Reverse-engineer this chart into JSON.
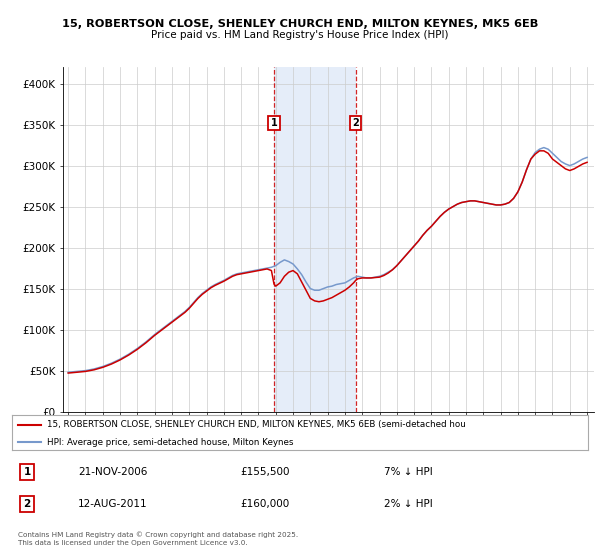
{
  "title1": "15, ROBERTSON CLOSE, SHENLEY CHURCH END, MILTON KEYNES, MK5 6EB",
  "title2": "Price paid vs. HM Land Registry's House Price Index (HPI)",
  "ylabel_ticks": [
    "£0",
    "£50K",
    "£100K",
    "£150K",
    "£200K",
    "£250K",
    "£300K",
    "£350K",
    "£400K"
  ],
  "ytick_vals": [
    0,
    50000,
    100000,
    150000,
    200000,
    250000,
    300000,
    350000,
    400000
  ],
  "ylim": [
    0,
    420000
  ],
  "hpi_color": "#7799cc",
  "price_color": "#cc0000",
  "marker1_date": 2006.9,
  "marker2_date": 2011.62,
  "shade_color": "#ccddf5",
  "legend_line1": "15, ROBERTSON CLOSE, SHENLEY CHURCH END, MILTON KEYNES, MK5 6EB (semi-detached hou",
  "legend_line2": "HPI: Average price, semi-detached house, Milton Keynes",
  "marker1_text": "21-NOV-2006",
  "marker1_price": "£155,500",
  "marker1_pct": "7% ↓ HPI",
  "marker2_text": "12-AUG-2011",
  "marker2_price": "£160,000",
  "marker2_pct": "2% ↓ HPI",
  "footnote": "Contains HM Land Registry data © Crown copyright and database right 2025.\nThis data is licensed under the Open Government Licence v3.0.",
  "background": "#ffffff",
  "grid_color": "#cccccc",
  "hpi_years": [
    1995.0,
    1995.25,
    1995.5,
    1995.75,
    1996.0,
    1996.25,
    1996.5,
    1996.75,
    1997.0,
    1997.25,
    1997.5,
    1997.75,
    1998.0,
    1998.25,
    1998.5,
    1998.75,
    1999.0,
    1999.25,
    1999.5,
    1999.75,
    2000.0,
    2000.25,
    2000.5,
    2000.75,
    2001.0,
    2001.25,
    2001.5,
    2001.75,
    2002.0,
    2002.25,
    2002.5,
    2002.75,
    2003.0,
    2003.25,
    2003.5,
    2003.75,
    2004.0,
    2004.25,
    2004.5,
    2004.75,
    2005.0,
    2005.25,
    2005.5,
    2005.75,
    2006.0,
    2006.25,
    2006.5,
    2006.75,
    2007.0,
    2007.25,
    2007.5,
    2007.75,
    2008.0,
    2008.25,
    2008.5,
    2008.75,
    2009.0,
    2009.25,
    2009.5,
    2009.75,
    2010.0,
    2010.25,
    2010.5,
    2010.75,
    2011.0,
    2011.25,
    2011.5,
    2011.75,
    2012.0,
    2012.25,
    2012.5,
    2012.75,
    2013.0,
    2013.25,
    2013.5,
    2013.75,
    2014.0,
    2014.25,
    2014.5,
    2014.75,
    2015.0,
    2015.25,
    2015.5,
    2015.75,
    2016.0,
    2016.25,
    2016.5,
    2016.75,
    2017.0,
    2017.25,
    2017.5,
    2017.75,
    2018.0,
    2018.25,
    2018.5,
    2018.75,
    2019.0,
    2019.25,
    2019.5,
    2019.75,
    2020.0,
    2020.25,
    2020.5,
    2020.75,
    2021.0,
    2021.25,
    2021.5,
    2021.75,
    2022.0,
    2022.25,
    2022.5,
    2022.75,
    2023.0,
    2023.25,
    2023.5,
    2023.75,
    2024.0,
    2024.25,
    2024.5,
    2024.75,
    2025.0
  ],
  "hpi_vals": [
    48000,
    48500,
    49000,
    49500,
    50000,
    51000,
    52000,
    53500,
    55000,
    57000,
    59000,
    61500,
    64000,
    67000,
    70000,
    73500,
    77000,
    81000,
    85000,
    89500,
    94000,
    98000,
    102000,
    106000,
    110000,
    114000,
    118000,
    122000,
    127000,
    133000,
    139000,
    144000,
    148000,
    152000,
    155000,
    157500,
    160000,
    163000,
    166000,
    168000,
    169000,
    170000,
    171000,
    172000,
    173000,
    174000,
    175000,
    176000,
    178000,
    182000,
    185000,
    183000,
    180000,
    174000,
    167000,
    158000,
    150000,
    148000,
    148000,
    150000,
    152000,
    153000,
    155000,
    156000,
    157000,
    160000,
    163000,
    165000,
    164000,
    163000,
    163000,
    164000,
    165000,
    167000,
    170000,
    173000,
    178000,
    184000,
    190000,
    196000,
    202000,
    208000,
    215000,
    221000,
    226000,
    232000,
    238000,
    243000,
    247000,
    250000,
    253000,
    255000,
    256000,
    257000,
    257000,
    256000,
    255000,
    254000,
    253000,
    252000,
    252000,
    253000,
    255000,
    260000,
    268000,
    280000,
    295000,
    308000,
    316000,
    320000,
    322000,
    320000,
    315000,
    310000,
    305000,
    302000,
    300000,
    302000,
    305000,
    308000,
    310000
  ],
  "price_years": [
    1995.0,
    1995.25,
    1995.5,
    1995.75,
    1996.0,
    1996.25,
    1996.5,
    1996.75,
    1997.0,
    1997.25,
    1997.5,
    1997.75,
    1998.0,
    1998.25,
    1998.5,
    1998.75,
    1999.0,
    1999.25,
    1999.5,
    1999.75,
    2000.0,
    2000.25,
    2000.5,
    2000.75,
    2001.0,
    2001.25,
    2001.5,
    2001.75,
    2002.0,
    2002.25,
    2002.5,
    2002.75,
    2003.0,
    2003.25,
    2003.5,
    2003.75,
    2004.0,
    2004.25,
    2004.5,
    2004.75,
    2005.0,
    2005.25,
    2005.5,
    2005.75,
    2006.0,
    2006.25,
    2006.5,
    2006.75,
    2006.9,
    2007.0,
    2007.25,
    2007.5,
    2007.75,
    2008.0,
    2008.25,
    2008.5,
    2008.75,
    2009.0,
    2009.25,
    2009.5,
    2009.75,
    2010.0,
    2010.25,
    2010.5,
    2010.75,
    2011.0,
    2011.25,
    2011.5,
    2011.62,
    2011.75,
    2012.0,
    2012.25,
    2012.5,
    2012.75,
    2013.0,
    2013.25,
    2013.5,
    2013.75,
    2014.0,
    2014.25,
    2014.5,
    2014.75,
    2015.0,
    2015.25,
    2015.5,
    2015.75,
    2016.0,
    2016.25,
    2016.5,
    2016.75,
    2017.0,
    2017.25,
    2017.5,
    2017.75,
    2018.0,
    2018.25,
    2018.5,
    2018.75,
    2019.0,
    2019.25,
    2019.5,
    2019.75,
    2020.0,
    2020.25,
    2020.5,
    2020.75,
    2021.0,
    2021.25,
    2021.5,
    2021.75,
    2022.0,
    2022.25,
    2022.5,
    2022.75,
    2023.0,
    2023.25,
    2023.5,
    2023.75,
    2024.0,
    2024.25,
    2024.5,
    2024.75,
    2025.0
  ],
  "price_vals": [
    47000,
    47500,
    48000,
    48500,
    49000,
    50000,
    51000,
    52500,
    54000,
    56000,
    58000,
    60500,
    63000,
    66000,
    69000,
    72500,
    76000,
    80000,
    84000,
    88500,
    93000,
    97000,
    101000,
    105000,
    109000,
    113000,
    117000,
    121000,
    126000,
    132000,
    138000,
    143000,
    147000,
    151000,
    154000,
    156500,
    159000,
    162000,
    165000,
    167000,
    168000,
    169000,
    170000,
    171000,
    172000,
    173000,
    174000,
    172000,
    155500,
    153000,
    157000,
    165000,
    170000,
    172000,
    168000,
    158000,
    148000,
    138000,
    135000,
    134000,
    135000,
    137000,
    139000,
    142000,
    145000,
    148000,
    152000,
    157000,
    160000,
    162000,
    163000,
    163000,
    163000,
    163500,
    164000,
    166000,
    169000,
    173000,
    178000,
    184000,
    190000,
    196000,
    202000,
    208000,
    215000,
    221000,
    226000,
    232000,
    238000,
    243000,
    247000,
    250000,
    253000,
    255000,
    256000,
    257000,
    257000,
    256000,
    255000,
    254000,
    253000,
    252000,
    252000,
    253000,
    255000,
    260000,
    268000,
    280000,
    295000,
    308000,
    314000,
    318000,
    318000,
    315000,
    308000,
    304000,
    300000,
    296000,
    294000,
    296000,
    299000,
    302000,
    304000
  ]
}
